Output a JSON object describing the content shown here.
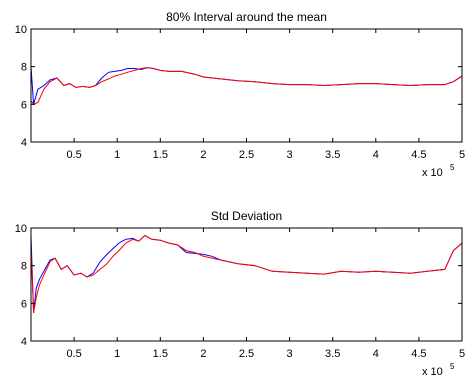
{
  "colors": {
    "blue": "#0000ff",
    "red": "#ff0000",
    "axis": "#000000"
  },
  "chart_data": [
    {
      "type": "line",
      "title": "80% Interval around the mean",
      "xlabel": "",
      "ylabel": "",
      "x_multiplier_label": {
        "base": "x 10",
        "exp": "5"
      },
      "xlim": [
        0,
        5
      ],
      "ylim": [
        4,
        10
      ],
      "x_ticks": [
        "0.5",
        "1",
        "1.5",
        "2",
        "2.5",
        "3",
        "3.5",
        "4",
        "4.5",
        "5"
      ],
      "y_ticks": [
        "4",
        "6",
        "8",
        "10"
      ],
      "grid": false,
      "series": [
        {
          "color": "blue",
          "x": [
            0,
            0.03,
            0.08,
            0.15,
            0.22,
            0.3,
            0.38,
            0.45,
            0.52,
            0.6,
            0.68,
            0.75,
            0.82,
            0.9,
            0.97,
            1.05,
            1.12,
            1.2,
            1.28,
            1.35,
            1.42,
            1.5,
            1.6,
            1.75,
            1.9,
            2.0,
            2.2,
            2.4,
            2.6,
            2.8,
            3.0,
            3.2,
            3.4,
            3.6,
            3.8,
            4.0,
            4.2,
            4.4,
            4.6,
            4.8,
            4.9,
            5.0
          ],
          "y": [
            8.0,
            6.0,
            6.8,
            7.0,
            7.3,
            7.4,
            7.0,
            7.1,
            6.9,
            6.95,
            6.9,
            7.0,
            7.4,
            7.7,
            7.75,
            7.8,
            7.9,
            7.9,
            7.85,
            7.95,
            7.9,
            7.8,
            7.75,
            7.75,
            7.6,
            7.45,
            7.35,
            7.25,
            7.2,
            7.1,
            7.05,
            7.05,
            7.0,
            7.05,
            7.1,
            7.1,
            7.05,
            7.0,
            7.05,
            7.05,
            7.2,
            7.5
          ]
        },
        {
          "color": "red",
          "x": [
            0,
            0.03,
            0.08,
            0.15,
            0.22,
            0.3,
            0.38,
            0.45,
            0.52,
            0.6,
            0.68,
            0.75,
            0.82,
            0.9,
            0.97,
            1.05,
            1.12,
            1.2,
            1.28,
            1.35,
            1.42,
            1.5,
            1.6,
            1.75,
            1.9,
            2.0,
            2.2,
            2.4,
            2.6,
            2.8,
            3.0,
            3.2,
            3.4,
            3.6,
            3.8,
            4.0,
            4.2,
            4.4,
            4.6,
            4.8,
            4.9,
            5.0
          ],
          "y": [
            6.2,
            6.0,
            6.1,
            6.8,
            7.2,
            7.4,
            7.0,
            7.1,
            6.9,
            6.95,
            6.9,
            7.0,
            7.2,
            7.35,
            7.5,
            7.6,
            7.7,
            7.8,
            7.9,
            7.95,
            7.9,
            7.8,
            7.75,
            7.75,
            7.6,
            7.45,
            7.35,
            7.25,
            7.2,
            7.1,
            7.05,
            7.05,
            7.0,
            7.05,
            7.1,
            7.1,
            7.05,
            7.0,
            7.05,
            7.05,
            7.2,
            7.5
          ]
        }
      ]
    },
    {
      "type": "line",
      "title": "Std Deviation",
      "xlabel": "",
      "ylabel": "",
      "x_multiplier_label": {
        "base": "x 10",
        "exp": "5"
      },
      "xlim": [
        0,
        5
      ],
      "ylim": [
        4,
        10
      ],
      "x_ticks": [
        "0.5",
        "1",
        "1.5",
        "2",
        "2.5",
        "3",
        "3.5",
        "4",
        "4.5",
        "5"
      ],
      "y_ticks": [
        "4",
        "6",
        "8",
        "10"
      ],
      "grid": false,
      "series": [
        {
          "color": "blue",
          "x": [
            0,
            0.03,
            0.06,
            0.1,
            0.15,
            0.22,
            0.28,
            0.35,
            0.42,
            0.5,
            0.58,
            0.65,
            0.72,
            0.8,
            0.88,
            0.95,
            1.02,
            1.1,
            1.18,
            1.25,
            1.32,
            1.4,
            1.5,
            1.6,
            1.7,
            1.8,
            1.9,
            2.0,
            2.1,
            2.2,
            2.4,
            2.6,
            2.8,
            3.0,
            3.2,
            3.4,
            3.6,
            3.8,
            4.0,
            4.2,
            4.4,
            4.6,
            4.8,
            4.9,
            5.0
          ],
          "y": [
            9.6,
            5.5,
            6.8,
            7.3,
            7.7,
            8.3,
            8.4,
            7.8,
            8.0,
            7.5,
            7.6,
            7.4,
            7.6,
            8.2,
            8.6,
            8.9,
            9.2,
            9.4,
            9.45,
            9.3,
            9.6,
            9.4,
            9.35,
            9.2,
            9.1,
            8.7,
            8.65,
            8.6,
            8.5,
            8.3,
            8.1,
            8.0,
            7.7,
            7.65,
            7.6,
            7.55,
            7.7,
            7.65,
            7.7,
            7.65,
            7.6,
            7.7,
            7.8,
            8.8,
            9.2
          ]
        },
        {
          "color": "red",
          "x": [
            0,
            0.03,
            0.06,
            0.1,
            0.15,
            0.22,
            0.28,
            0.35,
            0.42,
            0.5,
            0.58,
            0.65,
            0.72,
            0.8,
            0.88,
            0.95,
            1.02,
            1.1,
            1.18,
            1.25,
            1.32,
            1.4,
            1.5,
            1.6,
            1.7,
            1.8,
            1.9,
            2.0,
            2.1,
            2.2,
            2.4,
            2.6,
            2.8,
            3.0,
            3.2,
            3.4,
            3.6,
            3.8,
            4.0,
            4.2,
            4.4,
            4.6,
            4.8,
            4.9,
            5.0
          ],
          "y": [
            9.0,
            5.5,
            6.3,
            7.0,
            7.5,
            8.2,
            8.4,
            7.8,
            8.0,
            7.5,
            7.6,
            7.4,
            7.5,
            7.8,
            8.1,
            8.5,
            8.8,
            9.2,
            9.4,
            9.3,
            9.6,
            9.4,
            9.35,
            9.2,
            9.1,
            8.8,
            8.7,
            8.5,
            8.4,
            8.3,
            8.1,
            8.0,
            7.7,
            7.65,
            7.6,
            7.55,
            7.7,
            7.65,
            7.7,
            7.65,
            7.6,
            7.7,
            7.8,
            8.8,
            9.2
          ]
        }
      ]
    }
  ]
}
